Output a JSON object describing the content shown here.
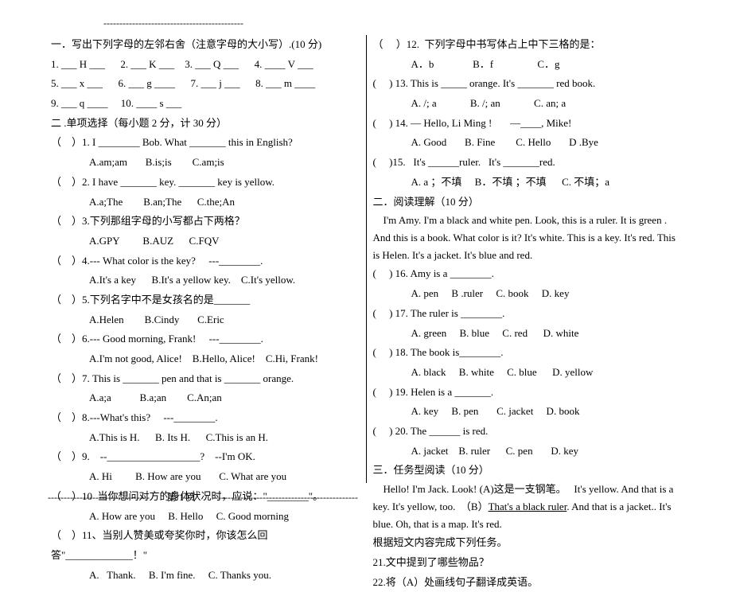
{
  "top_dash": "--------------------------------------------",
  "bottom_dash_left": "--------------------------------",
  "bottom_dash_right": "---------------------------------------------",
  "page_num": "第 1 页",
  "left": {
    "s1_title": "一．写出下列字母的左邻右舍（注意字母的大小写）.(10 分)",
    "s1_r1": "1. ___ H ___      2. ___ K ___    3. ___ Q ___      4. ____ V ___",
    "s1_r2": "5. ___ x ___      6. ___ g ____      7. ___ j ___      8. ___ m ____",
    "s1_r3": "9. ___ q ____     10. ____ s ___",
    "s2_title": "二 .单项选择（每小题 2 分，计 30 分）",
    "q1": "（    ）1. I ________ Bob. What _______ this in English?",
    "q1a": "A.am;am       B.is;is        C.am;is",
    "q2": "（    ）2. I have _______ key. _______ key is yellow.",
    "q2a": "A.a;The        B.an;The      C.the;An",
    "q3": "（    ）3.下列那组字母的小写都占下两格？",
    "q3a": "A.GPY         B.AUZ      C.FQV",
    "q4": "（    ）4.--- What color is the key?     ---________.",
    "q4a": "A.It's a key      B.It's a yellow key.    C.It's yellow.",
    "q5": "（    ）5.下列名字中不是女孩名的是_______",
    "q5a": "A.Helen        B.Cindy       C.Eric",
    "q6": "（    ）6.--- Good morning, Frank!     ---________.",
    "q6a": "A.I'm not good, Alice!    B.Hello, Alice!    C.Hi, Frank!",
    "q7": "（    ）7. This is _______ pen and that is _______ orange.",
    "q7a": "A.a;a           B.a;an        C.An;an",
    "q8": "（    ）8.---What's this?     ---________.",
    "q8a": "A.This is H.      B. Its H.      C.This is an H.",
    "q9": "（    ）9.    --__________________?    --I'm OK.",
    "q9a": "A. Hi         B. How are you       C. What are you",
    "q10": "（    ）10  当你想问对方的身体状况时，应说：\"________\"。",
    "q10a": "A. How are you     B. Hello     C. Good morning",
    "q11": "（    ）11、当别人赞美或夸奖你时，你该怎么回答\"_____________！\"",
    "q11a": "A.   Thank.     B. I'm fine.     C. Thanks you."
  },
  "right": {
    "q12": "（     ）12.  下列字母中书写体占上中下三格的是：",
    "q12a": "A．b               B．f                 C．g",
    "q13": "(     ) 13. This is _____ orange. It's _______ red book.",
    "q13a": "A. /; a             B. /; an             C. an; a",
    "q14": "(     ) 14. — Hello, Li Ming !       —____, Mike!",
    "q14a": "A. Good       B. Fine        C. Hello       D .Bye",
    "q15": "(     )15.   It's ______ruler.   It's _______red.",
    "q15a": "A. a ；不填     B．不填 ；不填      C. 不填；a",
    "s2_title": "二．阅读理解（10 分）",
    "p1": "    I'm Amy. I'm a black and white pen. Look, this is a ruler. It is green . And this is a book. What color is it? It's white. This is a key. It's red. This is Helen. It's a jacket. It's blue and red.",
    "q16": "(     ) 16. Amy is a ________.",
    "q16a": "A. pen     B .ruler     C. book     D. key",
    "q17": "(     ) 17. The ruler is ________.",
    "q17a": "A. green     B. blue     C. red      D. white",
    "q18": "(     ) 18. The book is________.",
    "q18a": "A. black     B. white     C. blue      D. yellow",
    "q19": "(     ) 19. Helen is a _______.",
    "q19a": "A. key     B. pen       C. jacket     D. book",
    "q20": "(     ) 20. The ______ is red.",
    "q20a": "A. jacket    B. ruler      C. pen       D. key",
    "s3_title": "三．任务型阅读（10 分）",
    "p2a": "    Hello! I'm Jack. Look! (A)这是一支钢笔。   It's yellow. And that is a key. It's yellow, too.  （B）",
    "p2b": "That's a black ruler",
    "p2c": ". And that is a jacket.. It's blue. Oh, that is a map. It's red.",
    "p3": "根据短文内容完成下列任务。",
    "q21": "21.文中提到了哪些物品？",
    "q22": "22.将（A）处画线句子翻译成英语。"
  }
}
